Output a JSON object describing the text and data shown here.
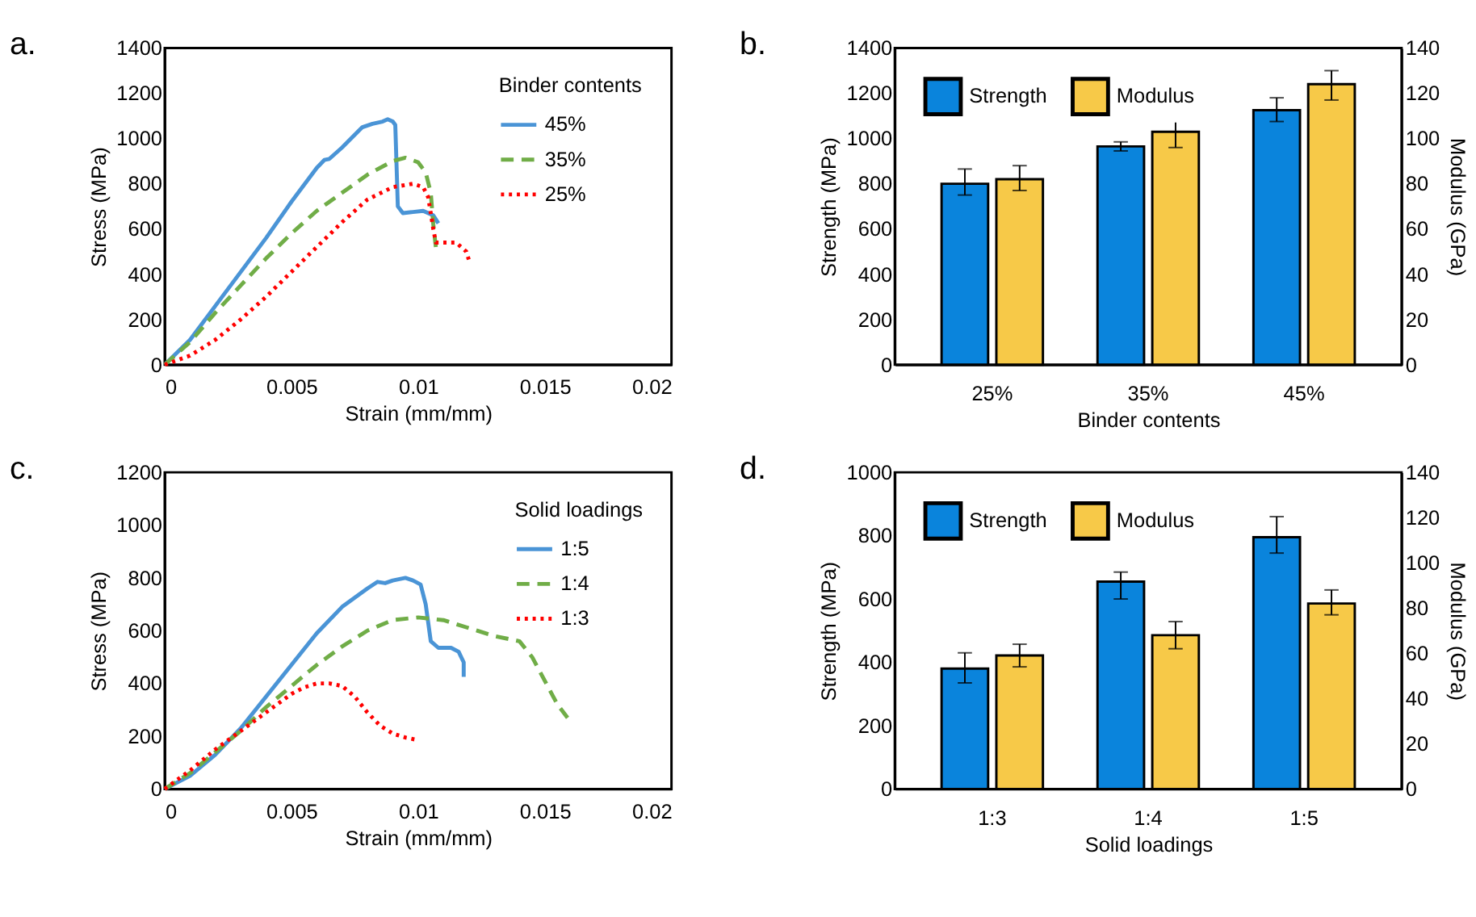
{
  "chart_data": [
    {
      "type": "line",
      "title": "a.",
      "xlabel": "Strain (mm/mm)",
      "ylabel": "Stress (MPa)",
      "legend_title": "Binder contents",
      "legend": "top right",
      "grid": false,
      "marker": "none",
      "xlim": [
        0,
        0.02
      ],
      "xticks": [
        0,
        0.005,
        0.01,
        0.015,
        0.02
      ],
      "ylim": [
        0,
        1400
      ],
      "yticks": [
        0,
        200,
        400,
        600,
        800,
        1000,
        1200,
        1400
      ],
      "series": [
        {
          "name": "45%",
          "color": "#4a94d6",
          "line_style": "solid",
          "x": [
            0,
            0.001,
            0.002,
            0.003,
            0.004,
            0.005,
            0.006,
            0.0063,
            0.0065,
            0.007,
            0.0078,
            0.0082,
            0.0086,
            0.0088,
            0.009,
            0.0091,
            0.0092,
            0.0094,
            0.0098,
            0.0102,
            0.0106,
            0.0108
          ],
          "values": [
            0,
            110,
            260,
            410,
            560,
            720,
            870,
            905,
            910,
            960,
            1050,
            1065,
            1075,
            1085,
            1075,
            1060,
            700,
            670,
            675,
            680,
            660,
            625
          ]
        },
        {
          "name": "35%",
          "color": "#70ad47",
          "line_style": "dashed",
          "x": [
            0,
            0.001,
            0.002,
            0.003,
            0.004,
            0.005,
            0.006,
            0.007,
            0.008,
            0.009,
            0.0095,
            0.01,
            0.0103,
            0.0105,
            0.0106,
            0.0107
          ],
          "values": [
            0,
            100,
            230,
            350,
            470,
            580,
            680,
            760,
            840,
            900,
            915,
            895,
            850,
            760,
            620,
            520
          ]
        },
        {
          "name": "25%",
          "color": "#ff0000",
          "line_style": "dotted",
          "x": [
            0,
            0.001,
            0.002,
            0.003,
            0.004,
            0.005,
            0.006,
            0.007,
            0.008,
            0.009,
            0.0098,
            0.0102,
            0.0104,
            0.0106,
            0.0107,
            0.0115,
            0.0119,
            0.012
          ],
          "values": [
            0,
            40,
            110,
            200,
            300,
            410,
            520,
            630,
            730,
            785,
            800,
            785,
            740,
            600,
            540,
            540,
            500,
            465
          ]
        }
      ]
    },
    {
      "type": "bar",
      "title": "b.",
      "xlabel": "Binder contents",
      "ylabel": "Strength (MPa)",
      "y2label": "Modulus (GPa)",
      "legend": "top left",
      "grid": false,
      "categories": [
        "25%",
        "35%",
        "45%"
      ],
      "ylim": [
        0,
        1400
      ],
      "yticks": [
        0,
        200,
        400,
        600,
        800,
        1000,
        1200,
        1400
      ],
      "y2lim": [
        0,
        140
      ],
      "y2ticks": [
        0,
        20,
        40,
        60,
        80,
        100,
        120,
        140
      ],
      "series": [
        {
          "name": "Strength",
          "color": "#0a84dc",
          "values": [
            800,
            965,
            1125
          ],
          "errors": [
            [
              750,
              865
            ],
            [
              945,
              985
            ],
            [
              1075,
              1180
            ]
          ]
        },
        {
          "name": "Modulus",
          "color": "#f7c948",
          "axis": "y2",
          "values": [
            82,
            103,
            124
          ],
          "errors": [
            [
              77,
              88
            ],
            [
              96,
              108
            ],
            [
              117,
              130
            ]
          ]
        }
      ]
    },
    {
      "type": "line",
      "title": "c.",
      "xlabel": "Strain (mm/mm)",
      "ylabel": "Stress (MPa)",
      "legend_title": "Solid loadings",
      "legend": "top right",
      "grid": false,
      "marker": "none",
      "xlim": [
        0,
        0.02
      ],
      "xticks": [
        0,
        0.005,
        0.01,
        0.015,
        0.02
      ],
      "ylim": [
        0,
        1200
      ],
      "yticks": [
        0,
        200,
        400,
        600,
        800,
        1000,
        1200
      ],
      "series": [
        {
          "name": "1:5",
          "color": "#4a94d6",
          "line_style": "solid",
          "x": [
            0,
            0.001,
            0.002,
            0.003,
            0.004,
            0.005,
            0.006,
            0.007,
            0.008,
            0.0084,
            0.0087,
            0.009,
            0.0095,
            0.0098,
            0.0101,
            0.0103,
            0.0105,
            0.0108,
            0.0113,
            0.0116,
            0.0118,
            0.0118
          ],
          "values": [
            0,
            50,
            130,
            230,
            350,
            470,
            590,
            690,
            760,
            785,
            780,
            790,
            800,
            790,
            775,
            700,
            560,
            535,
            535,
            520,
            480,
            425
          ]
        },
        {
          "name": "1:4",
          "color": "#70ad47",
          "line_style": "dashed",
          "x": [
            0,
            0.001,
            0.002,
            0.003,
            0.004,
            0.005,
            0.006,
            0.007,
            0.008,
            0.009,
            0.01,
            0.011,
            0.012,
            0.013,
            0.014,
            0.0145,
            0.015,
            0.0155,
            0.0159
          ],
          "values": [
            0,
            60,
            140,
            220,
            310,
            390,
            470,
            540,
            600,
            640,
            650,
            640,
            610,
            580,
            560,
            500,
            410,
            320,
            270
          ]
        },
        {
          "name": "1:3",
          "color": "#ff0000",
          "line_style": "dotted",
          "x": [
            0,
            0.001,
            0.002,
            0.003,
            0.004,
            0.005,
            0.0055,
            0.006,
            0.0065,
            0.007,
            0.0075,
            0.008,
            0.0085,
            0.009,
            0.0095,
            0.01
          ],
          "values": [
            0,
            70,
            150,
            220,
            290,
            360,
            385,
            400,
            400,
            390,
            350,
            290,
            240,
            210,
            195,
            185
          ]
        }
      ]
    },
    {
      "type": "bar",
      "title": "d.",
      "xlabel": "Solid loadings",
      "ylabel": "Strength (MPa)",
      "y2label": "Modulus (GPa)",
      "legend": "top left",
      "grid": false,
      "categories": [
        "1:3",
        "1:4",
        "1:5"
      ],
      "ylim": [
        0,
        1000
      ],
      "yticks": [
        0,
        200,
        400,
        600,
        800,
        1000
      ],
      "y2lim": [
        0,
        140
      ],
      "y2ticks": [
        0,
        20,
        40,
        60,
        80,
        100,
        120,
        140
      ],
      "series": [
        {
          "name": "Strength",
          "color": "#0a84dc",
          "values": [
            380,
            655,
            795
          ],
          "errors": [
            [
              335,
              430
            ],
            [
              600,
              685
            ],
            [
              745,
              860
            ]
          ]
        },
        {
          "name": "Modulus",
          "color": "#f7c948",
          "axis": "y2",
          "values": [
            59,
            68,
            82
          ],
          "errors": [
            [
              54,
              64
            ],
            [
              62,
              74
            ],
            [
              77,
              88
            ]
          ]
        }
      ]
    }
  ]
}
